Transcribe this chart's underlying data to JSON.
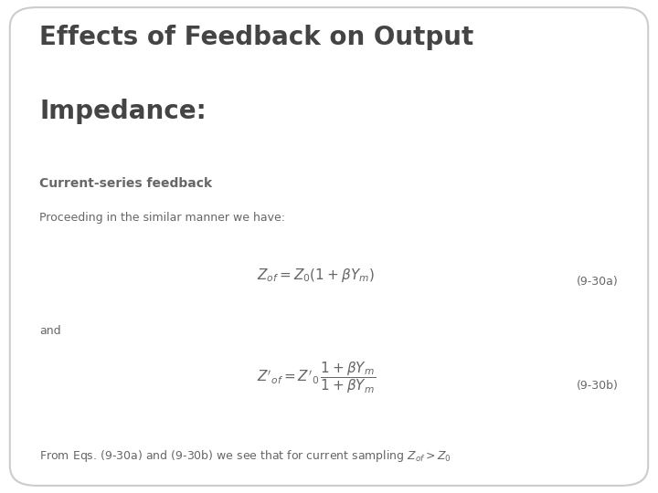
{
  "title_line1": "Effects of Feedback on Output",
  "title_line2": "Impedance:",
  "title_fontsize": 20,
  "title_color": "#444444",
  "subtitle_bold": "Current-series feedback",
  "subtitle_normal": "Proceeding in the similar manner we have:",
  "text_and": "and",
  "eq1_label": "(9-30a)",
  "eq2_label": "(9-30b)",
  "bg_color": "#ffffff",
  "border_color": "#cccccc",
  "text_color": "#666666",
  "title_text_color": "#444444",
  "subtitle_fontsize": 10,
  "body_fontsize": 9,
  "eq_fontsize": 11,
  "label_fontsize": 9
}
